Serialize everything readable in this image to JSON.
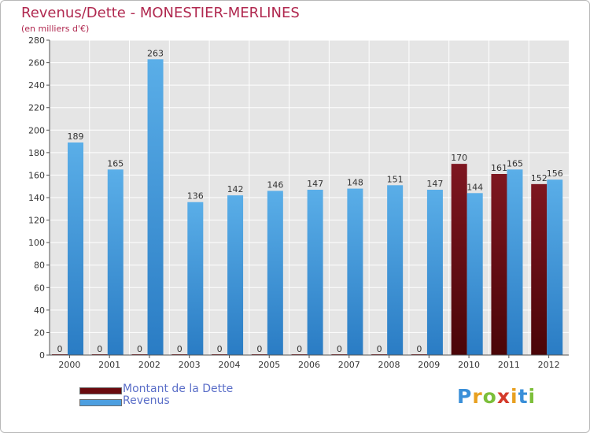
{
  "chart_data": {
    "type": "bar",
    "title": "Revenus/Dette - MONESTIER-MERLINES",
    "subtitle": "(en milliers d'€)",
    "xlabel": "",
    "ylabel": "",
    "ylim": [
      0,
      280
    ],
    "yticks": [
      0,
      20,
      40,
      60,
      80,
      100,
      120,
      140,
      160,
      180,
      200,
      220,
      240,
      260,
      280
    ],
    "grid": true,
    "legend_position": "bottom-left",
    "categories": [
      "2000",
      "2001",
      "2002",
      "2003",
      "2004",
      "2005",
      "2006",
      "2007",
      "2008",
      "2009",
      "2010",
      "2011",
      "2012"
    ],
    "series": [
      {
        "name": "Montant de la Dette",
        "color": "#7a1418",
        "values": [
          0,
          0,
          0,
          0,
          0,
          0,
          0,
          0,
          0,
          0,
          170,
          161,
          152
        ],
        "labels": [
          "0",
          "0",
          "0",
          "0",
          "0",
          "0",
          "0",
          "0",
          "0",
          "0",
          "170",
          "161",
          "152"
        ]
      },
      {
        "name": "Revenus",
        "color": "#4d9fe0",
        "values": [
          189,
          165,
          263,
          136,
          142,
          146,
          147,
          148,
          151,
          147,
          144,
          165,
          156
        ],
        "labels": [
          "189",
          "165",
          "263",
          "136",
          "142",
          "146",
          "147",
          "148",
          "151",
          "147",
          "144",
          "165",
          "156"
        ]
      }
    ]
  },
  "logo": {
    "letters": [
      "P",
      "r",
      "o",
      "x",
      "i",
      "t",
      "i"
    ],
    "colors": [
      "#3a8fd8",
      "#e8a020",
      "#7cbf3a",
      "#d43a2a",
      "#e8a020",
      "#3a8fd8",
      "#7cbf3a"
    ]
  }
}
